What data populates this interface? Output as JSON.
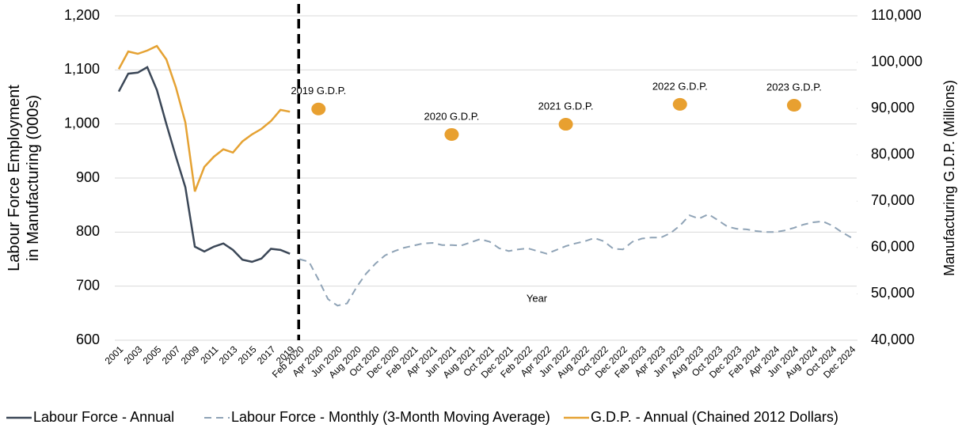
{
  "chart_data": {
    "type": "line",
    "xlabel": "Year",
    "ylabel": [
      "Labour Force Employment",
      "in Manufacturing (000s)"
    ],
    "y2label": "Manufacturing G.D.P. (Millions)",
    "categories": [
      "2001",
      null,
      "2003",
      null,
      "2005",
      null,
      "2007",
      null,
      "2009",
      null,
      "2011",
      null,
      "2013",
      null,
      "2015",
      null,
      "2017",
      null,
      "2019",
      "Feb 2020",
      null,
      "Apr 2020",
      null,
      "Jun 2020",
      null,
      "Aug 2020",
      null,
      "Oct 2020",
      null,
      "Dec 2020",
      null,
      "Feb 2021",
      null,
      "Apr 2021",
      null,
      "Jun 2021",
      null,
      "Aug 2021",
      null,
      "Oct 2021",
      null,
      "Dec 2021",
      null,
      "Feb 2022",
      null,
      "Apr 2022",
      null,
      "Jun 2022",
      null,
      "Aug 2022",
      null,
      "Oct 2022",
      null,
      "Dec 2022",
      null,
      "Feb 2023",
      null,
      "Apr 2023",
      null,
      "Jun 2023",
      null,
      "Aug 2023",
      null,
      "Oct 2023",
      null,
      "Dec 2023",
      null,
      "Feb 2024",
      null,
      "Apr 2024",
      null,
      "Jun 2024",
      null,
      "Aug 2024",
      null,
      "Oct 2024",
      null,
      "Dec 2024"
    ],
    "series": [
      {
        "name": "Labour Force - Annual",
        "color": "#3b4757",
        "dash": false,
        "values": [
          1060,
          1093,
          1095,
          1105,
          1063,
          1000,
          940,
          883,
          773,
          764,
          773,
          779,
          767,
          749,
          745,
          751,
          769,
          767,
          760,
          null,
          null,
          null,
          null,
          null,
          null,
          null,
          null,
          null,
          null,
          null,
          null,
          null,
          null,
          null,
          null,
          null,
          null,
          null,
          null,
          null,
          null,
          null,
          null,
          null,
          null,
          null,
          null,
          null,
          null,
          null,
          null,
          null,
          null,
          null,
          null,
          null,
          null,
          null,
          null,
          null,
          null,
          null,
          null,
          null,
          null,
          null,
          null,
          null,
          null,
          null,
          null,
          null,
          null,
          null,
          null,
          null,
          null,
          null
        ]
      },
      {
        "name": "Labour Force - Monthly (3-Month Moving Average)",
        "color": "#8fa3b6",
        "dash": true,
        "values": [
          null,
          null,
          null,
          null,
          null,
          null,
          null,
          null,
          null,
          null,
          null,
          null,
          null,
          null,
          null,
          null,
          null,
          null,
          null,
          750,
          745,
          712,
          676,
          664,
          668,
          698,
          723,
          742,
          757,
          765,
          771,
          775,
          779,
          780,
          776,
          776,
          775,
          781,
          787,
          782,
          770,
          765,
          768,
          770,
          765,
          760,
          767,
          774,
          779,
          783,
          789,
          783,
          769,
          768,
          782,
          788,
          790,
          790,
          798,
          812,
          831,
          825,
          833,
          822,
          810,
          806,
          805,
          802,
          800,
          800,
          803,
          808,
          814,
          818,
          820,
          812,
          800,
          790
        ]
      },
      {
        "name": "G.D.P. - Annual (Chained 2012 Dollars)",
        "color": "#e5a233",
        "dash": false,
        "axis": "y2",
        "values": [
          98500,
          102300,
          101800,
          102500,
          103500,
          100600,
          94600,
          87000,
          72100,
          77400,
          79600,
          81200,
          80500,
          82900,
          84400,
          85600,
          87300,
          89700,
          89300,
          null,
          null,
          null,
          null,
          null,
          null,
          null,
          null,
          null,
          null,
          null,
          null,
          null,
          null,
          null,
          null,
          null,
          null,
          null,
          null,
          null,
          null,
          null,
          null,
          null,
          null,
          null,
          null,
          null,
          null,
          null,
          null,
          null,
          null,
          null,
          null,
          null,
          null,
          null,
          null,
          null,
          null,
          null,
          null,
          null,
          null,
          null,
          null,
          null,
          null,
          null,
          null,
          null,
          null,
          null,
          null,
          null,
          null,
          null
        ]
      }
    ],
    "annotations": [
      {
        "text": "2019 G.D.P.",
        "category": "Apr 2020",
        "value": 89900,
        "color": "#e8a030"
      },
      {
        "text": "2020 G.D.P.",
        "category": "Jun 2021",
        "value": 84400,
        "color": "#e8a030"
      },
      {
        "text": "2021 G.D.P.",
        "category": "Jun 2022",
        "value": 86600,
        "color": "#e8a030"
      },
      {
        "text": "2022 G.D.P.",
        "category": "Jun 2023",
        "value": 90900,
        "color": "#e8a030"
      },
      {
        "text": "2023 G.D.P.",
        "category": "Jun 2024",
        "value": 90700,
        "color": "#e8a030"
      }
    ],
    "ylim": [
      600,
      1200
    ],
    "yticks": [
      600,
      700,
      800,
      900,
      {
        "value": 1000,
        "label": "1,000"
      },
      {
        "value": 1100,
        "label": "1,100"
      },
      {
        "value": 1200,
        "label": "1,200"
      }
    ],
    "y2lim": [
      40000,
      110000
    ],
    "y2ticks": [
      {
        "value": 40000,
        "label": "40,000"
      },
      {
        "value": 50000,
        "label": "50,000"
      },
      {
        "value": 60000,
        "label": "60,000"
      },
      {
        "value": 70000,
        "label": "70,000"
      },
      {
        "value": 80000,
        "label": "80,000"
      },
      {
        "value": 90000,
        "label": "90,000"
      },
      {
        "value": 100000,
        "label": "100,000"
      },
      {
        "value": 110000,
        "label": "110,000"
      }
    ],
    "grid": true,
    "legend": "bottom"
  }
}
